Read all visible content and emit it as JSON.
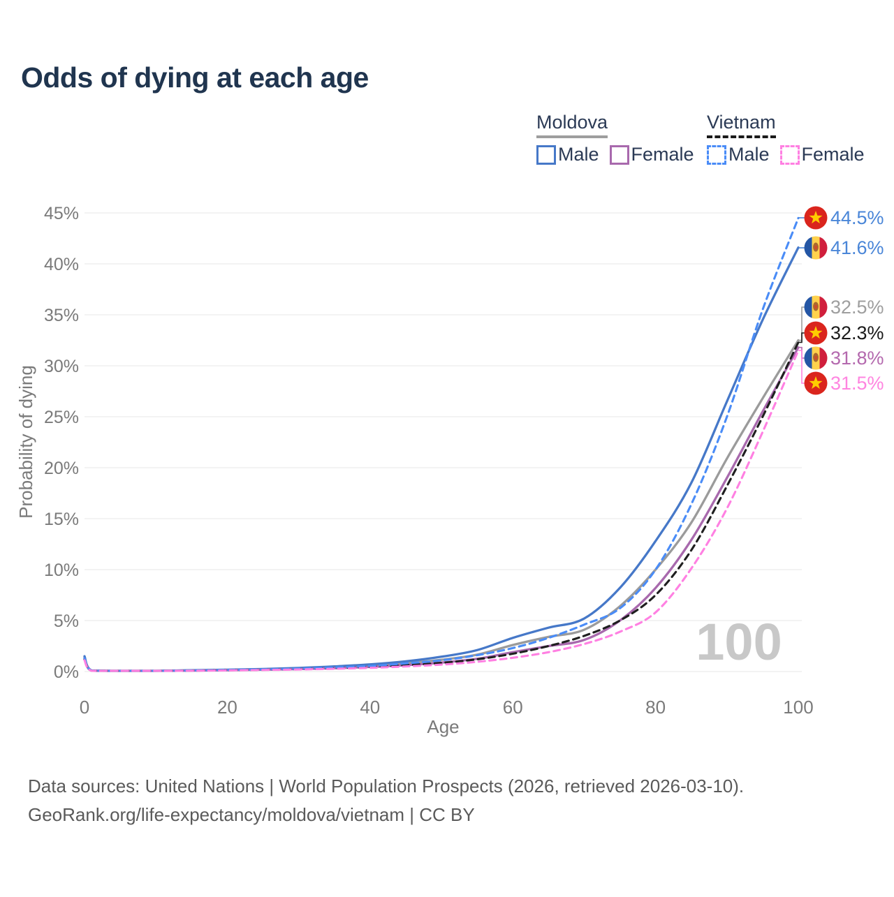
{
  "title": "Odds of dying at each age",
  "watermark": "100",
  "legend": {
    "groups": [
      {
        "country": "Moldova",
        "line_style": "solid",
        "underline_color": "#9e9e9e",
        "items": [
          {
            "label": "Male",
            "color": "#4678c8",
            "dash": false
          },
          {
            "label": "Female",
            "color": "#a869ad",
            "dash": false
          }
        ]
      },
      {
        "country": "Vietnam",
        "line_style": "dashed",
        "underline_color": "#1a1a1a",
        "items": [
          {
            "label": "Male",
            "color": "#4a8cf7",
            "dash": true
          },
          {
            "label": "Female",
            "color": "#ff80e2",
            "dash": true
          }
        ]
      }
    ]
  },
  "footer": {
    "line1": "Data sources: United Nations | World Population Prospects (2026, retrieved 2026-03-10).",
    "line2": "GeoRank.org/life-expectancy/moldova/vietnam | CC BY"
  },
  "chart_data": {
    "type": "line",
    "title": "Odds of dying at each age",
    "xlabel": "Age",
    "ylabel": "Probability of dying",
    "xlim": [
      0,
      100
    ],
    "ylim": [
      0,
      45
    ],
    "grid": true,
    "legend_position": "top-right",
    "xticks": [
      0,
      20,
      40,
      60,
      80,
      100
    ],
    "yticks": [
      "0%",
      "5%",
      "10%",
      "15%",
      "20%",
      "25%",
      "30%",
      "35%",
      "40%",
      "45%"
    ],
    "x": [
      0,
      1,
      5,
      10,
      15,
      20,
      25,
      30,
      35,
      40,
      45,
      50,
      55,
      60,
      65,
      70,
      75,
      80,
      85,
      90,
      95,
      100
    ],
    "y_units": "percent",
    "series": [
      {
        "name": "Moldova Male",
        "country": "moldova",
        "sex": "male",
        "color": "#4678c8",
        "dash": false,
        "values": [
          1.5,
          0.1,
          0.06,
          0.07,
          0.12,
          0.18,
          0.25,
          0.35,
          0.5,
          0.7,
          1.0,
          1.45,
          2.1,
          3.3,
          4.3,
          5.2,
          8.2,
          12.8,
          18.5,
          26.5,
          34.5,
          41.6
        ],
        "end_label": "41.6%",
        "end_label_color": "#4a86d8"
      },
      {
        "name": "Moldova Female",
        "country": "moldova",
        "sex": "female",
        "color": "#a869ad",
        "dash": false,
        "values": [
          1.25,
          0.08,
          0.05,
          0.06,
          0.09,
          0.13,
          0.18,
          0.24,
          0.33,
          0.45,
          0.63,
          0.88,
          1.25,
          1.9,
          2.5,
          3.1,
          5.0,
          8.2,
          12.9,
          19.0,
          25.5,
          31.8
        ],
        "end_label": "31.8%",
        "end_label_color": "#b469ae"
      },
      {
        "name": "Moldova Both sexes",
        "country": "moldova",
        "sex": "both",
        "color": "#9b9b9b",
        "dash": false,
        "values": [
          1.4,
          0.09,
          0.055,
          0.065,
          0.11,
          0.16,
          0.22,
          0.3,
          0.42,
          0.58,
          0.82,
          1.15,
          1.65,
          2.6,
          3.4,
          4.1,
          6.4,
          10.0,
          14.6,
          20.9,
          26.8,
          32.5
        ],
        "end_label": "32.5%",
        "end_label_color": "#9e9e9e"
      },
      {
        "name": "Vietnam Male",
        "country": "vietnam",
        "sex": "male",
        "color": "#4a8cf7",
        "dash": true,
        "values": [
          1.3,
          0.09,
          0.05,
          0.06,
          0.1,
          0.15,
          0.2,
          0.28,
          0.4,
          0.55,
          0.8,
          1.1,
          1.6,
          2.3,
          3.3,
          4.6,
          6.2,
          10.0,
          16.4,
          25.0,
          35.5,
          44.5
        ],
        "end_label": "44.5%",
        "end_label_color": "#4a86d8"
      },
      {
        "name": "Vietnam Female",
        "country": "vietnam",
        "sex": "female",
        "color": "#ff80e2",
        "dash": true,
        "values": [
          1.1,
          0.07,
          0.04,
          0.05,
          0.08,
          0.11,
          0.15,
          0.2,
          0.27,
          0.36,
          0.5,
          0.68,
          0.95,
          1.35,
          1.9,
          2.7,
          3.9,
          5.8,
          10.1,
          16.0,
          23.5,
          31.5
        ],
        "end_label": "31.5%",
        "end_label_color": "#ff85e0"
      },
      {
        "name": "Vietnam Both sexes",
        "country": "vietnam",
        "sex": "both",
        "color": "#1f1f1f",
        "dash": true,
        "values": [
          1.2,
          0.08,
          0.045,
          0.055,
          0.09,
          0.13,
          0.17,
          0.23,
          0.32,
          0.44,
          0.62,
          0.85,
          1.2,
          1.75,
          2.5,
          3.5,
          5.0,
          7.5,
          11.9,
          18.2,
          25.0,
          32.3
        ],
        "end_label": "32.3%",
        "end_label_color": "#1a1a1a"
      }
    ]
  }
}
